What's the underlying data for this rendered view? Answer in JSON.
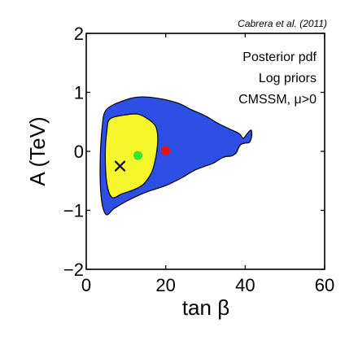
{
  "chart_data": {
    "type": "contour",
    "citation": "Cabrera et al. (2011)",
    "xlabel": "tan β",
    "ylabel": "A (TeV)",
    "xlim": [
      0,
      60
    ],
    "ylim": [
      -2,
      2
    ],
    "xticks": [
      0,
      20,
      40,
      60
    ],
    "xtick_labels": [
      "0",
      "20",
      "40",
      "60"
    ],
    "yticks": [
      -2,
      -1,
      0,
      1,
      2
    ],
    "ytick_labels": [
      "−2",
      "−1",
      "0",
      "1",
      "2"
    ],
    "annotations": [
      "Posterior pdf",
      "Log priors",
      "CMSSM, μ>0"
    ],
    "regions": [
      {
        "name": "outer",
        "color": "#2e4fe6",
        "points": [
          [
            5,
            0.7
          ],
          [
            9,
            0.85
          ],
          [
            13,
            0.92
          ],
          [
            18,
            0.9
          ],
          [
            23,
            0.82
          ],
          [
            26,
            0.72
          ],
          [
            30,
            0.6
          ],
          [
            33,
            0.48
          ],
          [
            36,
            0.38
          ],
          [
            38.5,
            0.3
          ],
          [
            39.5,
            0.22
          ],
          [
            40.5,
            0.3
          ],
          [
            41.5,
            0.36
          ],
          [
            41.6,
            0.24
          ],
          [
            41,
            0.15
          ],
          [
            40,
            0.14
          ],
          [
            39,
            0.12
          ],
          [
            38.5,
            0.08
          ],
          [
            37.8,
            -0.02
          ],
          [
            37.3,
            -0.05
          ],
          [
            36.5,
            -0.08
          ],
          [
            34.5,
            -0.1
          ],
          [
            32,
            -0.2
          ],
          [
            30,
            -0.25
          ],
          [
            27,
            -0.33
          ],
          [
            24,
            -0.45
          ],
          [
            20,
            -0.58
          ],
          [
            16,
            -0.67
          ],
          [
            13,
            -0.75
          ],
          [
            10,
            -0.85
          ],
          [
            7,
            -0.97
          ],
          [
            5,
            -1.07
          ],
          [
            3.8,
            -0.8
          ],
          [
            3.5,
            -0.2
          ],
          [
            4,
            0.4
          ]
        ]
      },
      {
        "name": "inner",
        "color": "#f5f52b",
        "points": [
          [
            6,
            0.55
          ],
          [
            10,
            0.62
          ],
          [
            13,
            0.63
          ],
          [
            15.5,
            0.55
          ],
          [
            17.5,
            0.42
          ],
          [
            18,
            0.2
          ],
          [
            17.5,
            -0.1
          ],
          [
            16.5,
            -0.35
          ],
          [
            14.5,
            -0.55
          ],
          [
            12,
            -0.65
          ],
          [
            9,
            -0.72
          ],
          [
            6.5,
            -0.78
          ],
          [
            5.2,
            -0.55
          ],
          [
            4.8,
            -0.05
          ],
          [
            5.2,
            0.35
          ]
        ]
      }
    ],
    "markers": [
      {
        "name": "best-fit",
        "symbol": "x",
        "color": "#000000",
        "x": 8.5,
        "y": -0.25
      },
      {
        "name": "posterior-mean",
        "symbol": "dot",
        "color": "#33e833",
        "x": 13,
        "y": -0.07
      },
      {
        "name": "third-point",
        "symbol": "dot",
        "color": "#ee1111",
        "x": 20,
        "y": 0.01
      }
    ]
  }
}
